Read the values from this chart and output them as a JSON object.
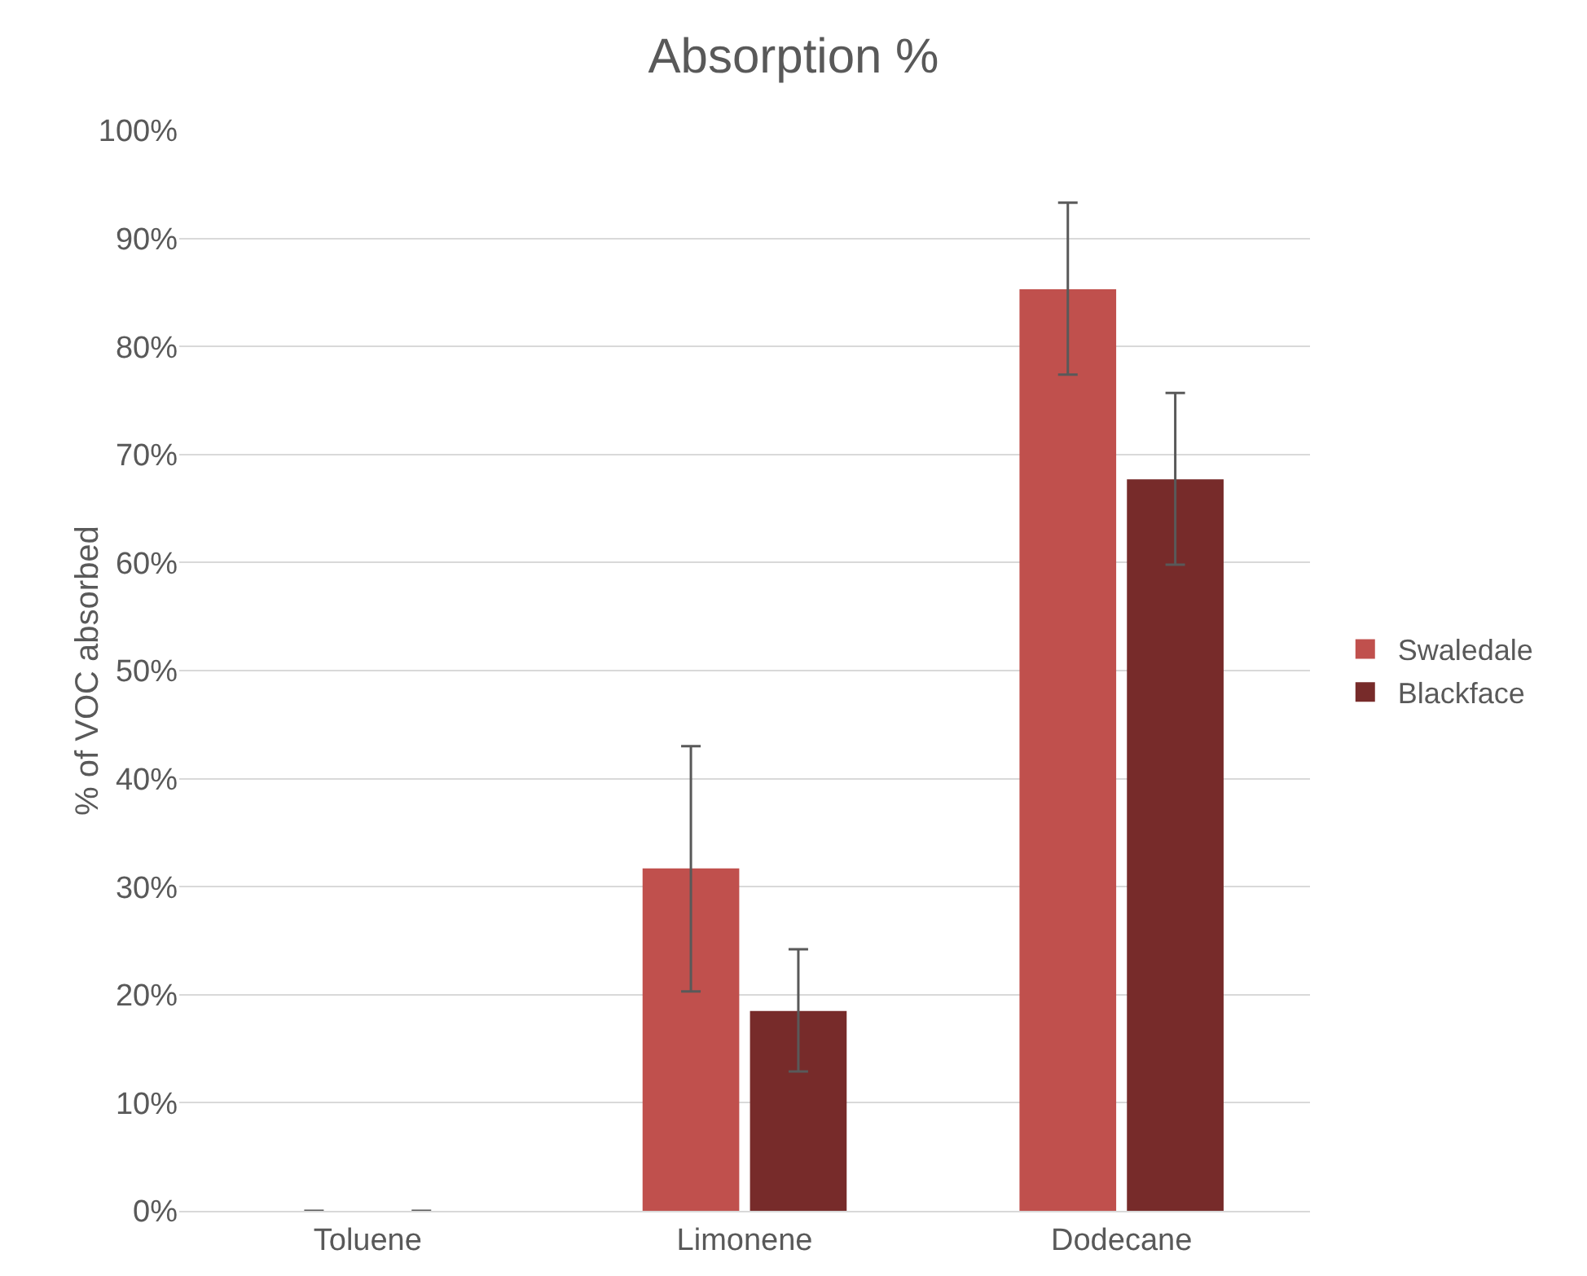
{
  "chart_data": {
    "type": "bar",
    "title": "Absorption %",
    "ylabel": "% of VOC absorbed",
    "categories": [
      "Toluene",
      "Limonene",
      "Dodecane"
    ],
    "series": [
      {
        "name": "Swaledale",
        "color": "#c0504d",
        "values": [
          0,
          31.7,
          85.3
        ],
        "errors": [
          0,
          [
            20.3,
            43.0
          ],
          [
            77.4,
            93.3
          ]
        ]
      },
      {
        "name": "Blackface",
        "color": "#772b2a",
        "values": [
          0,
          18.5,
          67.7
        ],
        "errors": [
          0,
          [
            12.9,
            24.2
          ],
          [
            59.8,
            75.7
          ]
        ]
      }
    ],
    "ylim": [
      0,
      100
    ],
    "yticks": [
      {
        "value": 0,
        "label": "0%"
      },
      {
        "value": 10,
        "label": "10%"
      },
      {
        "value": 20,
        "label": "20%"
      },
      {
        "value": 30,
        "label": "30%"
      },
      {
        "value": 40,
        "label": "40%"
      },
      {
        "value": 50,
        "label": "50%"
      },
      {
        "value": 60,
        "label": "60%"
      },
      {
        "value": 70,
        "label": "70%"
      },
      {
        "value": 80,
        "label": "80%"
      },
      {
        "value": 90,
        "label": "90%"
      },
      {
        "value": 100,
        "label": "100%"
      }
    ],
    "grid": "y",
    "legend": "right"
  }
}
